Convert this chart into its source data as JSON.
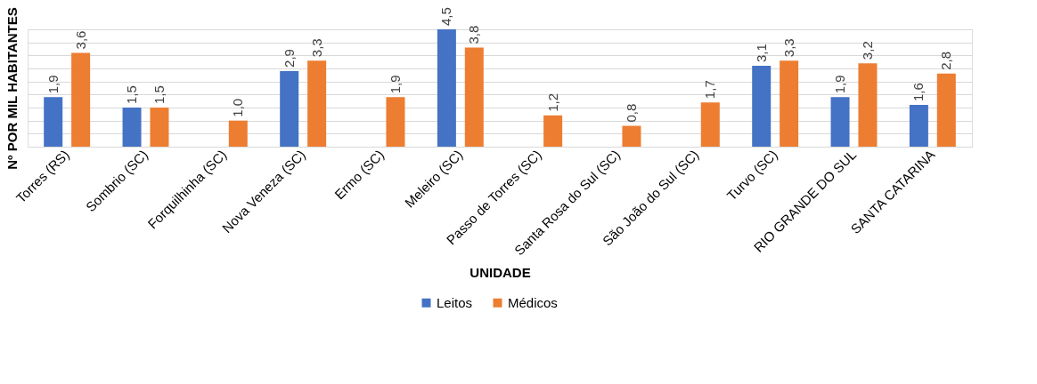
{
  "chart_data": {
    "type": "bar",
    "xlabel": "UNIDADE",
    "ylabel": "Nº POR MIL  HABITANTES",
    "categories": [
      "Torres (RS)",
      "Sombrio (SC)",
      "Forquilhinha (SC)",
      "Nova Veneza (SC)",
      "Ermo (SC)",
      "Meleiro (SC)",
      "Passo de Torres (SC)",
      "Santa Rosa do Sul (SC)",
      "São João do Sul (SC)",
      "Turvo (SC)",
      "RIO GRANDE DO SUL",
      "SANTA CATARINA"
    ],
    "series": [
      {
        "name": "Leitos",
        "color": "#4472c4",
        "values": [
          1.9,
          1.5,
          null,
          2.9,
          null,
          4.5,
          null,
          null,
          null,
          3.1,
          1.9,
          1.6
        ],
        "value_labels": [
          "1,9",
          "1,5",
          null,
          "2,9",
          null,
          "4,5",
          null,
          null,
          null,
          "3,1",
          "1,9",
          "1,6"
        ]
      },
      {
        "name": "Médicos",
        "color": "#ed7d31",
        "values": [
          3.6,
          1.5,
          1.0,
          3.3,
          1.9,
          3.8,
          1.2,
          0.8,
          1.7,
          3.3,
          3.2,
          2.8
        ],
        "value_labels": [
          "3,6",
          "1,5",
          "1,0",
          "3,3",
          "1,9",
          "3,8",
          "1,2",
          "0,8",
          "1,7",
          "3,3",
          "3,2",
          "2,8"
        ]
      }
    ],
    "grid": "y",
    "legend": "bottom",
    "tick_labels": "x"
  }
}
